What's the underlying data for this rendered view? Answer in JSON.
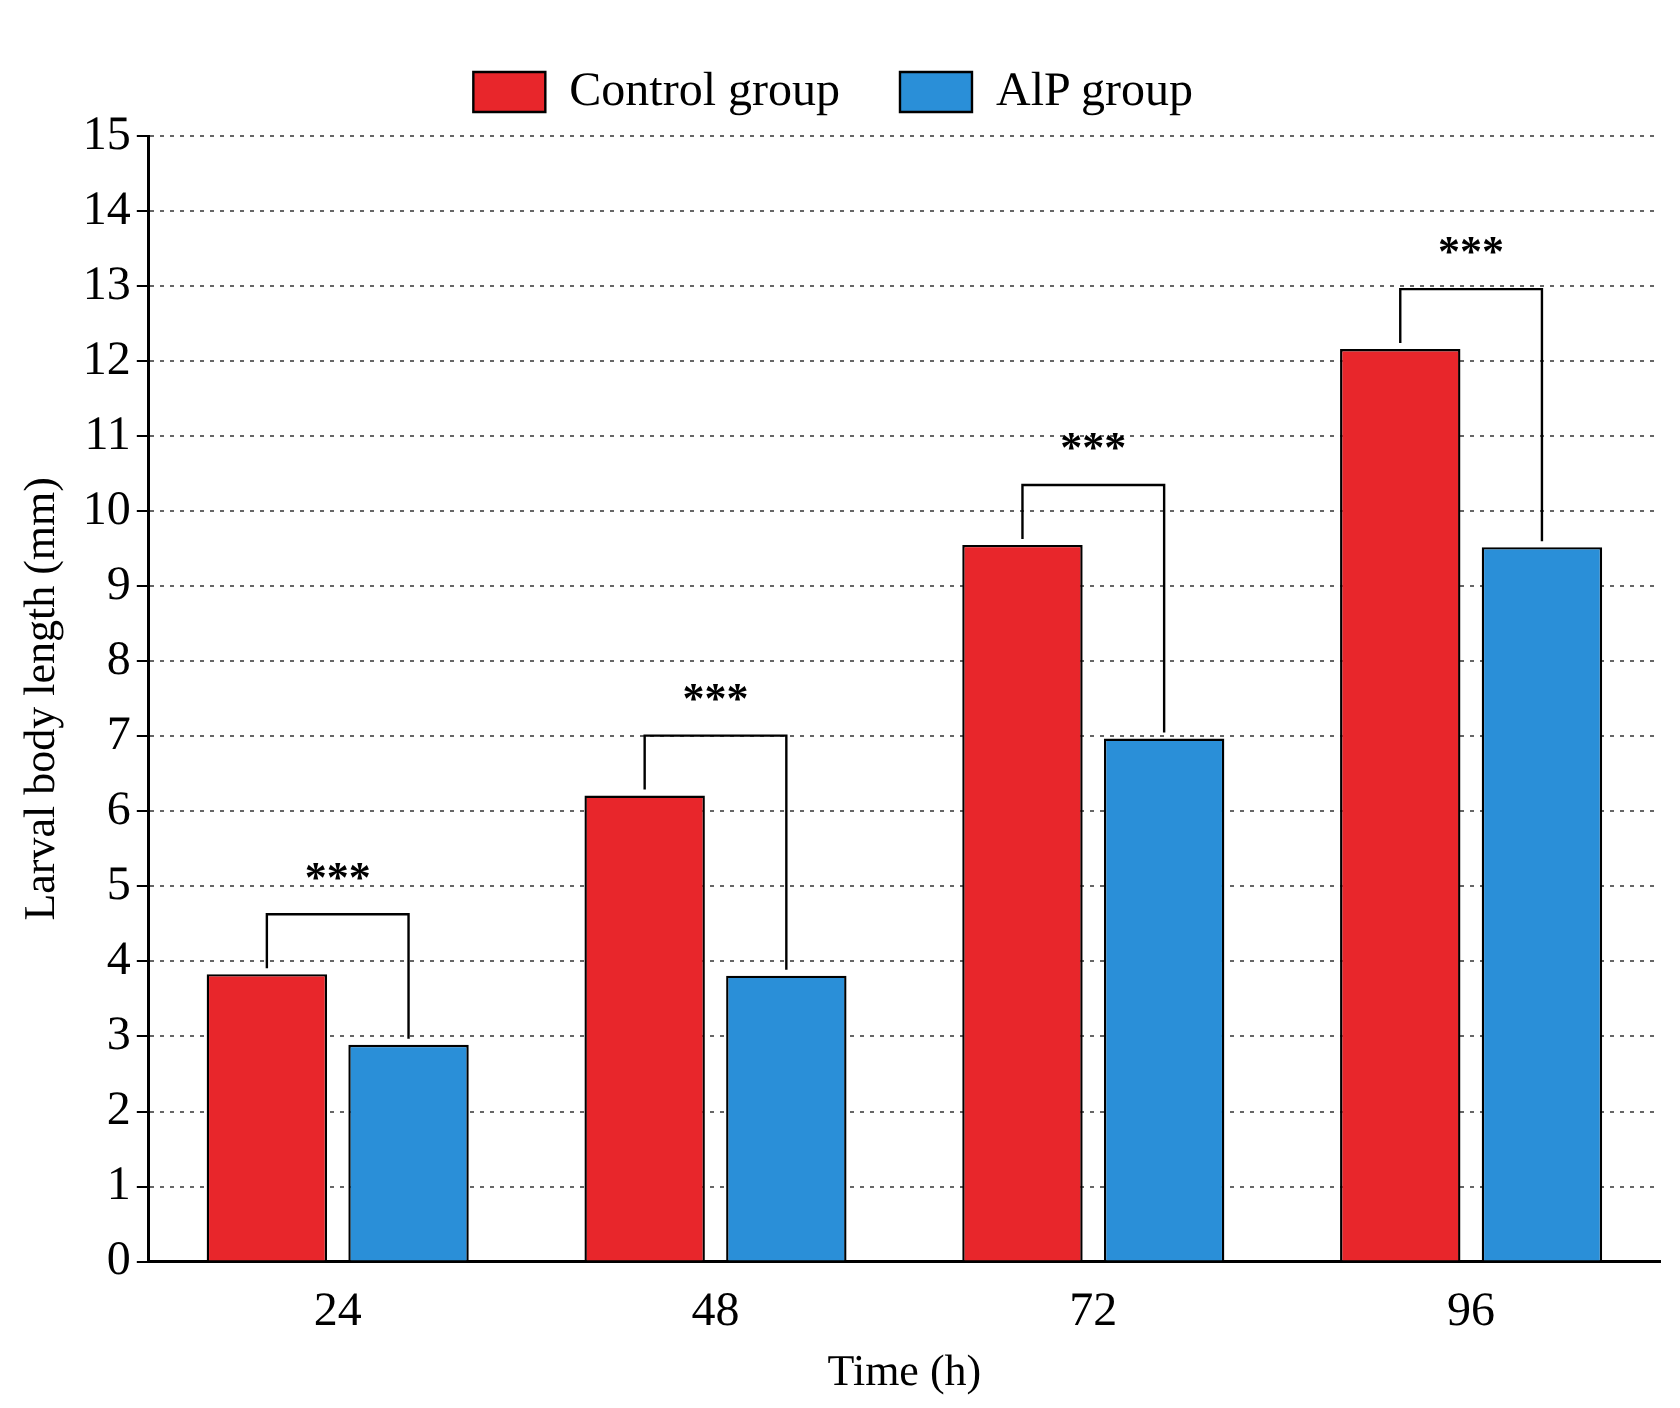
{
  "chart_data": {
    "type": "bar",
    "xlabel": "Time (h)",
    "ylabel": "Larval body length (mm)",
    "categories": [
      "24",
      "48",
      "72",
      "96"
    ],
    "series": [
      {
        "name": "Control group",
        "color": "#e8262b",
        "values": [
          3.83,
          6.21,
          9.55,
          12.16
        ]
      },
      {
        "name": "AlP group",
        "color": "#2a8fd8",
        "values": [
          2.89,
          3.81,
          6.97,
          9.52
        ]
      }
    ],
    "ylim": [
      0,
      15
    ],
    "yticks": [
      0,
      1,
      2,
      3,
      4,
      5,
      6,
      7,
      8,
      9,
      10,
      11,
      12,
      13,
      14,
      15
    ],
    "grid": "y",
    "legend": "top",
    "annotations": [
      "***",
      "***",
      "***",
      "***"
    ]
  }
}
